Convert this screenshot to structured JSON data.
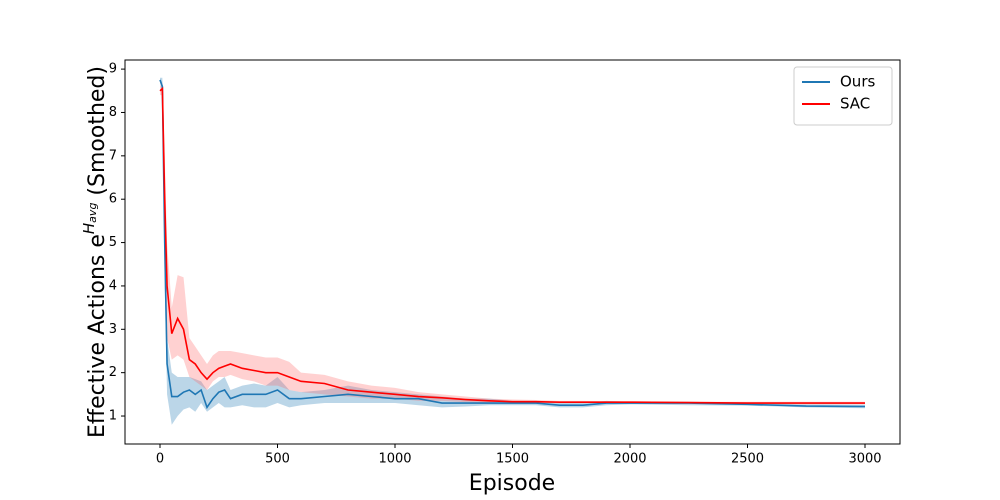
{
  "chart_data": {
    "type": "line",
    "xlabel": "Episode",
    "ylabel": [
      "Effective Actions e",
      "H",
      "avg",
      " (Smoothed)"
    ],
    "x": [
      0,
      10,
      20,
      30,
      50,
      75,
      100,
      125,
      150,
      175,
      200,
      225,
      250,
      275,
      300,
      350,
      400,
      450,
      500,
      550,
      600,
      700,
      800,
      900,
      1000,
      1100,
      1200,
      1300,
      1400,
      1500,
      1600,
      1700,
      1800,
      1900,
      2000,
      2250,
      2500,
      2750,
      3000
    ],
    "series": [
      {
        "name": "Ours",
        "color": "#1f77b4",
        "band_color": "#1f77b4",
        "values": [
          8.75,
          8.6,
          5,
          2.2,
          1.45,
          1.45,
          1.55,
          1.6,
          1.5,
          1.6,
          1.2,
          1.4,
          1.55,
          1.6,
          1.4,
          1.5,
          1.5,
          1.5,
          1.6,
          1.4,
          1.4,
          1.45,
          1.5,
          1.45,
          1.4,
          1.4,
          1.3,
          1.3,
          1.3,
          1.3,
          1.3,
          1.25,
          1.25,
          1.3,
          1.3,
          1.3,
          1.27,
          1.23,
          1.22
        ],
        "lower": [
          8.7,
          8.4,
          4,
          1.5,
          0.8,
          1.0,
          1.15,
          1.2,
          1.1,
          1.3,
          1.1,
          1.2,
          1.3,
          1.2,
          1.2,
          1.25,
          1.2,
          1.2,
          1.3,
          1.2,
          1.25,
          1.3,
          1.3,
          1.3,
          1.3,
          1.25,
          1.2,
          1.22,
          1.25,
          1.25,
          1.25,
          1.2,
          1.2,
          1.25,
          1.27,
          1.25,
          1.24,
          1.2,
          1.18
        ],
        "upper": [
          8.8,
          8.8,
          6,
          2.8,
          2.0,
          1.9,
          1.9,
          1.9,
          1.85,
          1.8,
          1.6,
          1.7,
          1.8,
          1.9,
          1.6,
          1.7,
          1.75,
          1.7,
          1.9,
          1.6,
          1.55,
          1.6,
          1.7,
          1.6,
          1.55,
          1.5,
          1.45,
          1.4,
          1.4,
          1.35,
          1.35,
          1.3,
          1.3,
          1.35,
          1.33,
          1.33,
          1.3,
          1.27,
          1.26
        ]
      },
      {
        "name": "SAC",
        "color": "#ff0000",
        "band_color": "#ff6666",
        "values": [
          8.5,
          8.55,
          6,
          4,
          2.9,
          3.25,
          3.0,
          2.3,
          2.2,
          2.0,
          1.85,
          2.0,
          2.1,
          2.15,
          2.2,
          2.1,
          2.05,
          2.0,
          2.0,
          1.9,
          1.8,
          1.75,
          1.6,
          1.55,
          1.5,
          1.45,
          1.42,
          1.38,
          1.35,
          1.33,
          1.33,
          1.32,
          1.32,
          1.32,
          1.32,
          1.31,
          1.3,
          1.3,
          1.3
        ],
        "lower": [
          8.4,
          8.4,
          5,
          2.8,
          2.3,
          2.4,
          2.3,
          1.9,
          1.8,
          1.7,
          1.6,
          1.8,
          1.9,
          1.9,
          1.95,
          1.85,
          1.8,
          1.7,
          1.7,
          1.6,
          1.55,
          1.5,
          1.45,
          1.4,
          1.4,
          1.35,
          1.35,
          1.32,
          1.3,
          1.3,
          1.3,
          1.3,
          1.3,
          1.3,
          1.3,
          1.29,
          1.28,
          1.27,
          1.27
        ],
        "upper": [
          8.6,
          8.7,
          7,
          5,
          3.5,
          4.25,
          4.2,
          2.8,
          2.6,
          2.4,
          2.2,
          2.4,
          2.5,
          2.5,
          2.5,
          2.45,
          2.4,
          2.35,
          2.35,
          2.25,
          2.0,
          1.95,
          1.8,
          1.7,
          1.65,
          1.55,
          1.5,
          1.45,
          1.4,
          1.38,
          1.37,
          1.35,
          1.35,
          1.34,
          1.34,
          1.33,
          1.33,
          1.33,
          1.33
        ]
      }
    ],
    "xlim": [
      -149,
      3149
    ],
    "xticks": [
      0,
      500,
      1000,
      1500,
      2000,
      2500,
      3000
    ],
    "ylim": [
      0.355,
      9.21
    ],
    "yticks": [
      1,
      2,
      3,
      4,
      5,
      6,
      7,
      8,
      9
    ],
    "legend": "upper right"
  }
}
